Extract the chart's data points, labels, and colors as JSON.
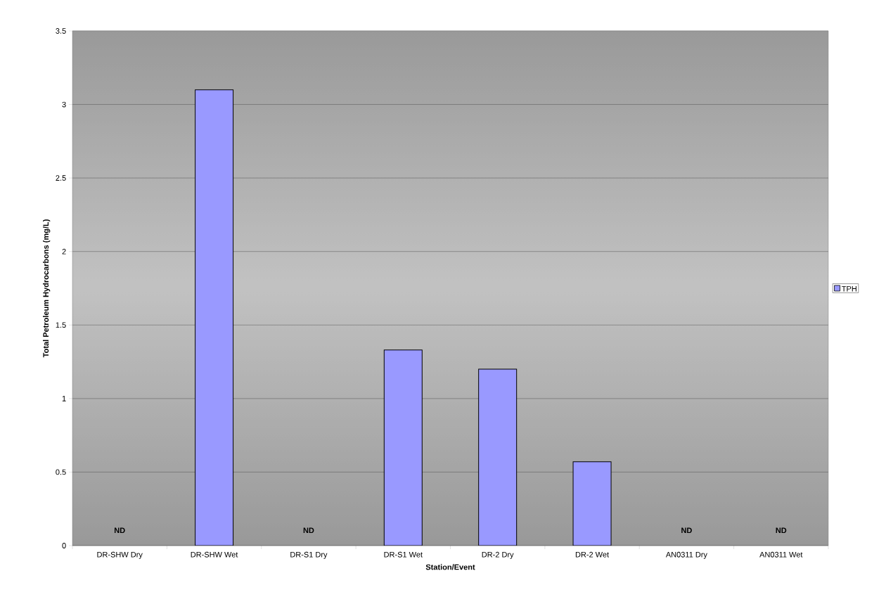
{
  "chart_data": {
    "type": "bar",
    "xlabel": "Station/Event",
    "ylabel": "Total Petroleum Hydrocarbons (mg/L)",
    "categories": [
      "DR-SHW Dry",
      "DR-SHW Wet",
      "DR-S1 Dry",
      "DR-S1 Wet",
      "DR-2 Dry",
      "DR-2 Wet",
      "AN0311 Dry",
      "AN0311 Wet"
    ],
    "series": [
      {
        "name": "TPH",
        "color": "#9999ff",
        "values": [
          null,
          3.1,
          null,
          1.33,
          1.2,
          0.57,
          null,
          null
        ]
      }
    ],
    "ylim": [
      0,
      3.5
    ],
    "yticks": [
      0,
      0.5,
      1,
      1.5,
      2,
      2.5,
      3,
      3.5
    ],
    "grid": "y",
    "legend": "right",
    "annotations": [
      "ND",
      "ND",
      "ND",
      "ND"
    ]
  }
}
